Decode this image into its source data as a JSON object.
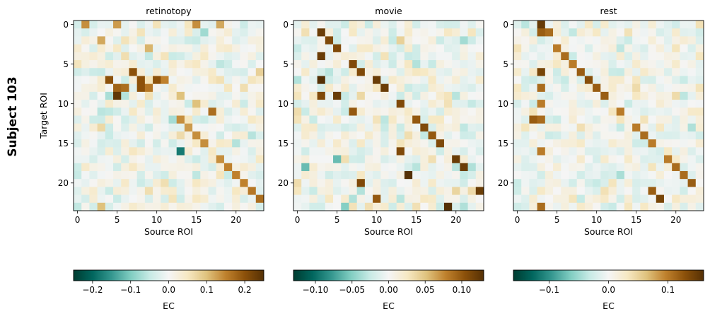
{
  "figure": {
    "row_label": "Subject 103"
  },
  "chart_data": [
    {
      "type": "heatmap",
      "title": "retinotopy",
      "xlabel": "Source ROI",
      "ylabel": "Target ROI",
      "n": 24,
      "x_ticks": [
        0,
        5,
        10,
        15,
        20
      ],
      "y_ticks": [
        0,
        5,
        10,
        15,
        20
      ],
      "seed": 11,
      "noise_scale": 0.085,
      "clim": [
        -0.25,
        0.25
      ],
      "colorbar_label": "EC",
      "colorbar_ticks": [
        -0.2,
        -0.1,
        0.0,
        0.1,
        0.2
      ],
      "colorbar_tick_labels": [
        "−0.2",
        "−0.1",
        "0.0",
        "0.1",
        "0.2"
      ],
      "strong_cells": [
        [
          0,
          1,
          0.14
        ],
        [
          0,
          5,
          0.13
        ],
        [
          0,
          15,
          0.14
        ],
        [
          0,
          18,
          0.12
        ],
        [
          2,
          3,
          0.12
        ],
        [
          3,
          9,
          0.11
        ],
        [
          6,
          7,
          0.2
        ],
        [
          7,
          4,
          0.2
        ],
        [
          7,
          8,
          0.2
        ],
        [
          7,
          10,
          0.2
        ],
        [
          7,
          11,
          0.15
        ],
        [
          8,
          5,
          0.18
        ],
        [
          8,
          6,
          0.17
        ],
        [
          8,
          8,
          0.2
        ],
        [
          8,
          9,
          0.16
        ],
        [
          9,
          4,
          -0.07
        ],
        [
          9,
          5,
          0.24
        ],
        [
          9,
          13,
          0.1
        ],
        [
          10,
          15,
          0.1
        ],
        [
          11,
          17,
          0.17
        ],
        [
          12,
          13,
          0.14
        ],
        [
          13,
          14,
          0.13
        ],
        [
          14,
          15,
          0.14
        ],
        [
          15,
          16,
          0.14
        ],
        [
          16,
          13,
          -0.18
        ],
        [
          17,
          18,
          0.14
        ],
        [
          18,
          19,
          0.15
        ],
        [
          19,
          20,
          0.15
        ],
        [
          20,
          21,
          0.15
        ],
        [
          21,
          22,
          0.16
        ],
        [
          22,
          23,
          0.17
        ],
        [
          23,
          3,
          0.1
        ]
      ]
    },
    {
      "type": "heatmap",
      "title": "movie",
      "xlabel": "Source ROI",
      "ylabel": "",
      "n": 24,
      "x_ticks": [
        0,
        5,
        10,
        15,
        20
      ],
      "y_ticks": [
        0,
        5,
        10,
        15,
        20
      ],
      "seed": 23,
      "noise_scale": 0.045,
      "clim": [
        -0.13,
        0.13
      ],
      "colorbar_label": "EC",
      "colorbar_ticks": [
        -0.1,
        -0.05,
        0.0,
        0.05,
        0.1
      ],
      "colorbar_tick_labels": [
        "−0.10",
        "−0.05",
        "0.00",
        "0.05",
        "0.10"
      ],
      "strong_cells": [
        [
          1,
          3,
          0.12
        ],
        [
          2,
          4,
          0.11
        ],
        [
          3,
          5,
          0.11
        ],
        [
          4,
          3,
          0.12
        ],
        [
          5,
          7,
          0.11
        ],
        [
          6,
          8,
          0.11
        ],
        [
          7,
          3,
          0.13
        ],
        [
          7,
          10,
          0.12
        ],
        [
          8,
          11,
          0.12
        ],
        [
          9,
          5,
          0.12
        ],
        [
          9,
          3,
          0.11
        ],
        [
          10,
          13,
          0.11
        ],
        [
          11,
          7,
          0.1
        ],
        [
          12,
          15,
          0.1
        ],
        [
          13,
          16,
          0.11
        ],
        [
          14,
          17,
          0.1
        ],
        [
          15,
          18,
          0.11
        ],
        [
          16,
          13,
          0.11
        ],
        [
          17,
          20,
          0.12
        ],
        [
          18,
          21,
          0.12
        ],
        [
          19,
          14,
          0.13
        ],
        [
          20,
          8,
          0.11
        ],
        [
          21,
          23,
          0.12
        ],
        [
          22,
          10,
          0.1
        ],
        [
          23,
          19,
          0.13
        ],
        [
          17,
          5,
          -0.06
        ],
        [
          18,
          1,
          -0.06
        ],
        [
          23,
          6,
          -0.05
        ]
      ]
    },
    {
      "type": "heatmap",
      "title": "rest",
      "xlabel": "Source ROI",
      "ylabel": "",
      "n": 24,
      "x_ticks": [
        0,
        5,
        10,
        15,
        20
      ],
      "y_ticks": [
        0,
        5,
        10,
        15,
        20
      ],
      "seed": 37,
      "noise_scale": 0.05,
      "clim": [
        -0.16,
        0.16
      ],
      "colorbar_label": "EC",
      "colorbar_ticks": [
        -0.1,
        0.0,
        0.1
      ],
      "colorbar_tick_labels": [
        "−0.1",
        "0.0",
        "0.1"
      ],
      "strong_cells": [
        [
          0,
          3,
          0.15
        ],
        [
          1,
          3,
          0.12
        ],
        [
          1,
          4,
          0.11
        ],
        [
          3,
          5,
          0.1
        ],
        [
          4,
          6,
          0.11
        ],
        [
          5,
          7,
          0.1
        ],
        [
          6,
          3,
          0.14
        ],
        [
          6,
          8,
          0.12
        ],
        [
          7,
          9,
          0.13
        ],
        [
          8,
          3,
          0.11
        ],
        [
          8,
          10,
          0.12
        ],
        [
          9,
          11,
          0.12
        ],
        [
          10,
          3,
          0.1
        ],
        [
          11,
          13,
          0.1
        ],
        [
          12,
          2,
          0.12
        ],
        [
          12,
          3,
          0.11
        ],
        [
          13,
          15,
          0.1
        ],
        [
          14,
          16,
          0.11
        ],
        [
          15,
          17,
          0.1
        ],
        [
          16,
          3,
          0.1
        ],
        [
          17,
          19,
          0.1
        ],
        [
          18,
          20,
          0.11
        ],
        [
          19,
          21,
          0.11
        ],
        [
          20,
          22,
          0.12
        ],
        [
          21,
          17,
          0.12
        ],
        [
          22,
          18,
          0.14
        ],
        [
          23,
          3,
          0.11
        ]
      ]
    }
  ]
}
